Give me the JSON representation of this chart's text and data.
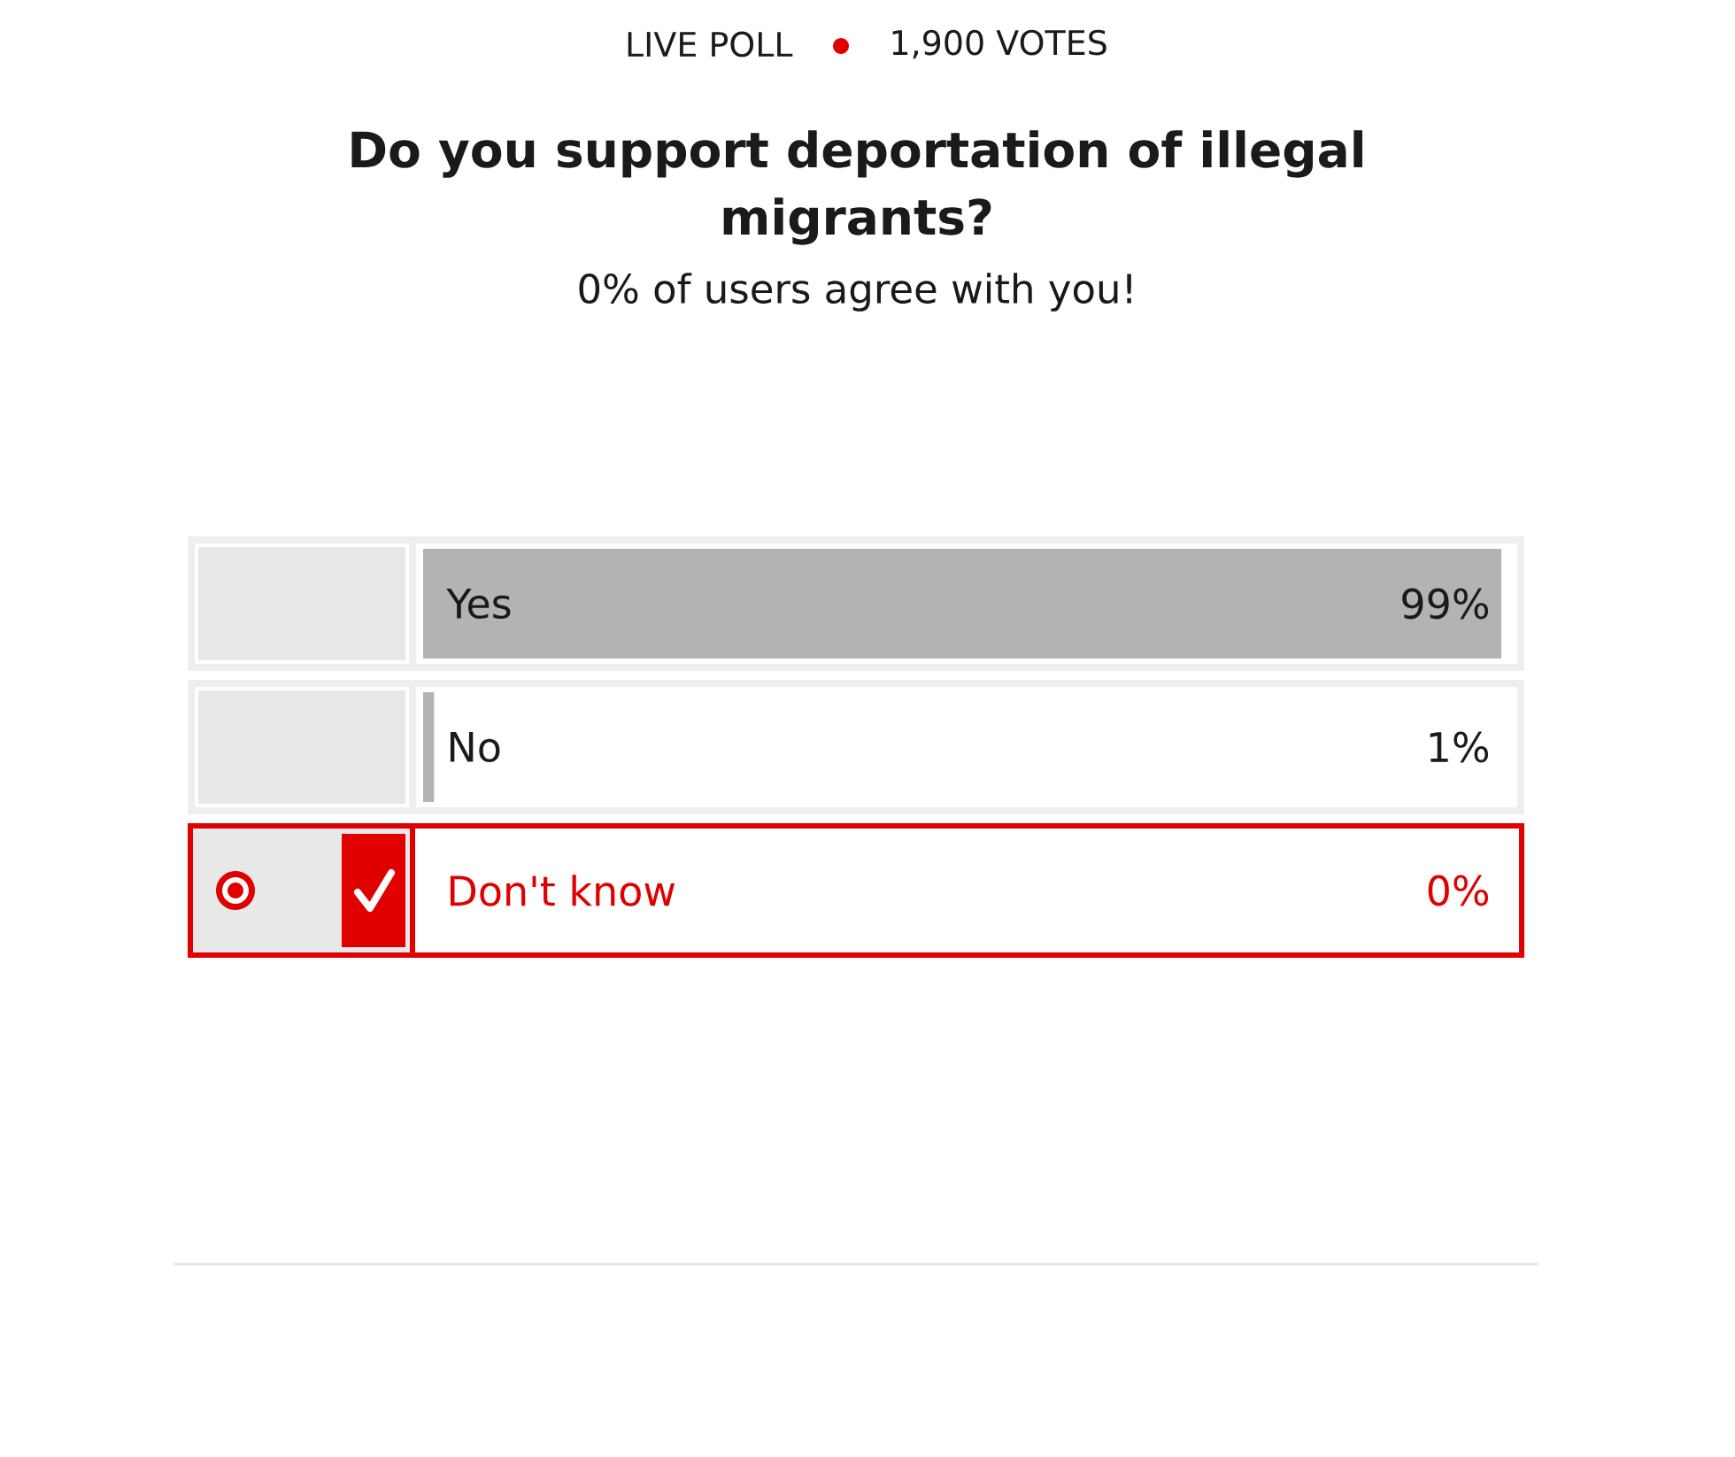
{
  "chart_data": {
    "type": "bar",
    "orientation": "horizontal",
    "title": "Do you support deportation of illegal migrants?",
    "subtitle": "0% of users agree with you!",
    "annotations": [
      "LIVE POLL",
      "1,900 VOTES"
    ],
    "categories": [
      "Yes",
      "No",
      "Don't know"
    ],
    "values": [
      99,
      1,
      0
    ],
    "colors": [
      "#b3b3b3",
      "#b3b3b3",
      "#e00000"
    ],
    "value_labels": [
      "99%",
      "1%",
      "0%"
    ],
    "tick_labels": "y"
  }
}
